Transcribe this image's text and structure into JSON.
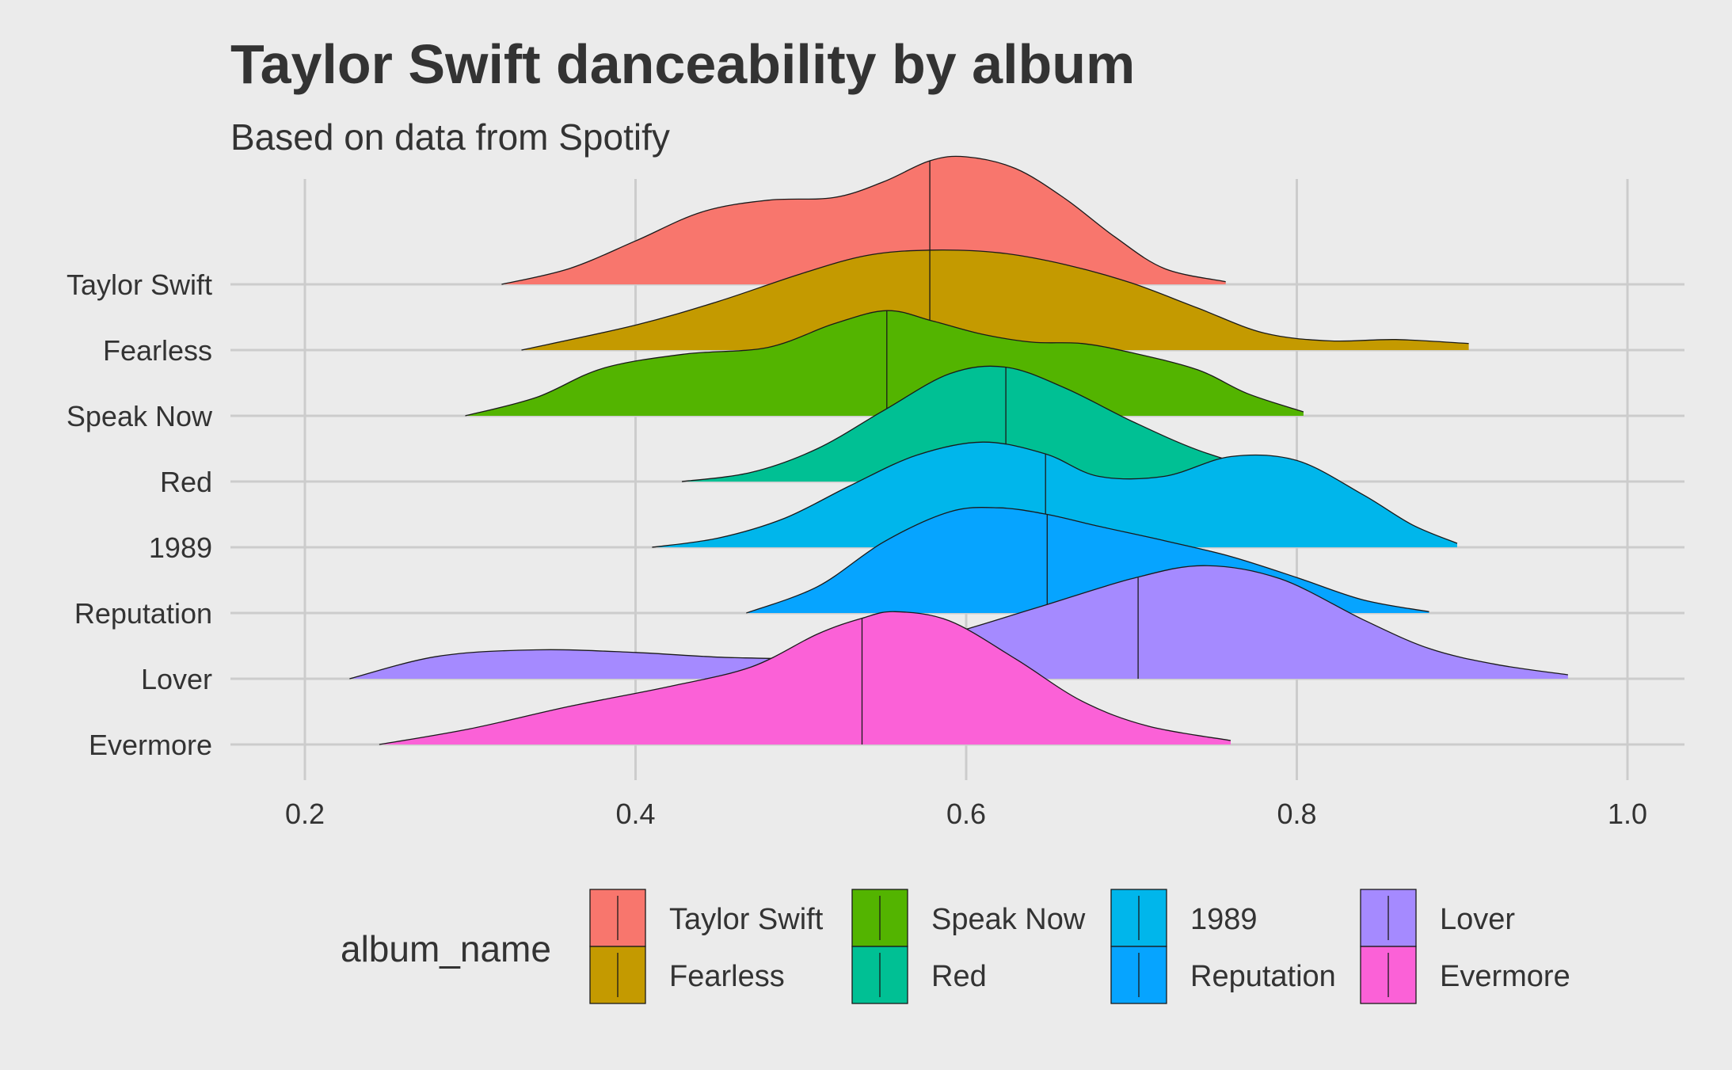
{
  "chart_data": {
    "type": "ridgeline",
    "title": "Taylor Swift danceability by album",
    "subtitle": "Based on data from Spotify",
    "xlabel": "",
    "ylabel": "",
    "xlim": [
      0.155,
      1.035
    ],
    "x_ticks": [
      {
        "value": 0.2,
        "label": "0.2"
      },
      {
        "value": 0.4,
        "label": "0.4"
      },
      {
        "value": 0.6,
        "label": "0.6"
      },
      {
        "value": 0.8,
        "label": "0.8"
      },
      {
        "value": 1.0,
        "label": "1.0"
      }
    ],
    "grid": true,
    "legend": {
      "title": "album_name",
      "position": "bottom",
      "entries": [
        "Taylor Swift",
        "Fearless",
        "Speak Now",
        "Red",
        "1989",
        "Reputation",
        "Lover",
        "Evermore"
      ]
    },
    "series": [
      {
        "name": "Taylor Swift",
        "color": "#F8766D",
        "median": 0.578,
        "density": [
          [
            0.319,
            0
          ],
          [
            0.36,
            0.12
          ],
          [
            0.4,
            0.33
          ],
          [
            0.44,
            0.55
          ],
          [
            0.48,
            0.64
          ],
          [
            0.52,
            0.66
          ],
          [
            0.55,
            0.78
          ],
          [
            0.578,
            0.94
          ],
          [
            0.6,
            0.97
          ],
          [
            0.63,
            0.88
          ],
          [
            0.66,
            0.65
          ],
          [
            0.69,
            0.36
          ],
          [
            0.72,
            0.12
          ],
          [
            0.757,
            0.02
          ]
        ]
      },
      {
        "name": "Fearless",
        "color": "#C49A00",
        "median": 0.578,
        "density": [
          [
            0.331,
            0
          ],
          [
            0.4,
            0.19
          ],
          [
            0.45,
            0.37
          ],
          [
            0.5,
            0.58
          ],
          [
            0.54,
            0.72
          ],
          [
            0.578,
            0.76
          ],
          [
            0.62,
            0.74
          ],
          [
            0.66,
            0.65
          ],
          [
            0.7,
            0.51
          ],
          [
            0.74,
            0.32
          ],
          [
            0.78,
            0.13
          ],
          [
            0.82,
            0.07
          ],
          [
            0.86,
            0.08
          ],
          [
            0.904,
            0.05
          ]
        ]
      },
      {
        "name": "Speak Now",
        "color": "#53B400",
        "median": 0.552,
        "density": [
          [
            0.297,
            0
          ],
          [
            0.34,
            0.14
          ],
          [
            0.38,
            0.36
          ],
          [
            0.43,
            0.47
          ],
          [
            0.48,
            0.52
          ],
          [
            0.52,
            0.7
          ],
          [
            0.552,
            0.8
          ],
          [
            0.58,
            0.72
          ],
          [
            0.61,
            0.62
          ],
          [
            0.64,
            0.56
          ],
          [
            0.67,
            0.55
          ],
          [
            0.7,
            0.48
          ],
          [
            0.74,
            0.35
          ],
          [
            0.77,
            0.17
          ],
          [
            0.804,
            0.03
          ]
        ]
      },
      {
        "name": "Red",
        "color": "#00C094",
        "median": 0.624,
        "density": [
          [
            0.428,
            0
          ],
          [
            0.47,
            0.07
          ],
          [
            0.51,
            0.25
          ],
          [
            0.55,
            0.54
          ],
          [
            0.59,
            0.82
          ],
          [
            0.624,
            0.87
          ],
          [
            0.66,
            0.71
          ],
          [
            0.7,
            0.46
          ],
          [
            0.74,
            0.24
          ],
          [
            0.78,
            0.09
          ],
          [
            0.812,
            0.02
          ]
        ]
      },
      {
        "name": "1989",
        "color": "#00B6EB",
        "median": 0.648,
        "density": [
          [
            0.41,
            0
          ],
          [
            0.45,
            0.07
          ],
          [
            0.49,
            0.22
          ],
          [
            0.53,
            0.47
          ],
          [
            0.57,
            0.7
          ],
          [
            0.61,
            0.8
          ],
          [
            0.648,
            0.71
          ],
          [
            0.68,
            0.54
          ],
          [
            0.72,
            0.54
          ],
          [
            0.76,
            0.69
          ],
          [
            0.8,
            0.66
          ],
          [
            0.84,
            0.4
          ],
          [
            0.87,
            0.17
          ],
          [
            0.897,
            0.03
          ]
        ]
      },
      {
        "name": "Reputation",
        "color": "#06A4FF",
        "median": 0.649,
        "density": [
          [
            0.467,
            0
          ],
          [
            0.51,
            0.2
          ],
          [
            0.55,
            0.54
          ],
          [
            0.59,
            0.77
          ],
          [
            0.62,
            0.8
          ],
          [
            0.649,
            0.75
          ],
          [
            0.68,
            0.66
          ],
          [
            0.72,
            0.55
          ],
          [
            0.76,
            0.43
          ],
          [
            0.8,
            0.27
          ],
          [
            0.84,
            0.1
          ],
          [
            0.88,
            0.01
          ]
        ]
      },
      {
        "name": "Lover",
        "color": "#A58AFF",
        "median": 0.704,
        "density": [
          [
            0.227,
            0
          ],
          [
            0.28,
            0.17
          ],
          [
            0.34,
            0.22
          ],
          [
            0.4,
            0.2
          ],
          [
            0.46,
            0.16
          ],
          [
            0.52,
            0.17
          ],
          [
            0.58,
            0.31
          ],
          [
            0.64,
            0.53
          ],
          [
            0.7,
            0.76
          ],
          [
            0.744,
            0.86
          ],
          [
            0.79,
            0.76
          ],
          [
            0.84,
            0.45
          ],
          [
            0.88,
            0.23
          ],
          [
            0.92,
            0.11
          ],
          [
            0.964,
            0.03
          ]
        ]
      },
      {
        "name": "Evermore",
        "color": "#FB61D7",
        "median": 0.537,
        "density": [
          [
            0.245,
            0
          ],
          [
            0.3,
            0.12
          ],
          [
            0.36,
            0.29
          ],
          [
            0.42,
            0.44
          ],
          [
            0.47,
            0.59
          ],
          [
            0.51,
            0.84
          ],
          [
            0.537,
            0.96
          ],
          [
            0.557,
            1.01
          ],
          [
            0.59,
            0.94
          ],
          [
            0.63,
            0.65
          ],
          [
            0.67,
            0.33
          ],
          [
            0.71,
            0.14
          ],
          [
            0.76,
            0.03
          ]
        ]
      }
    ]
  }
}
